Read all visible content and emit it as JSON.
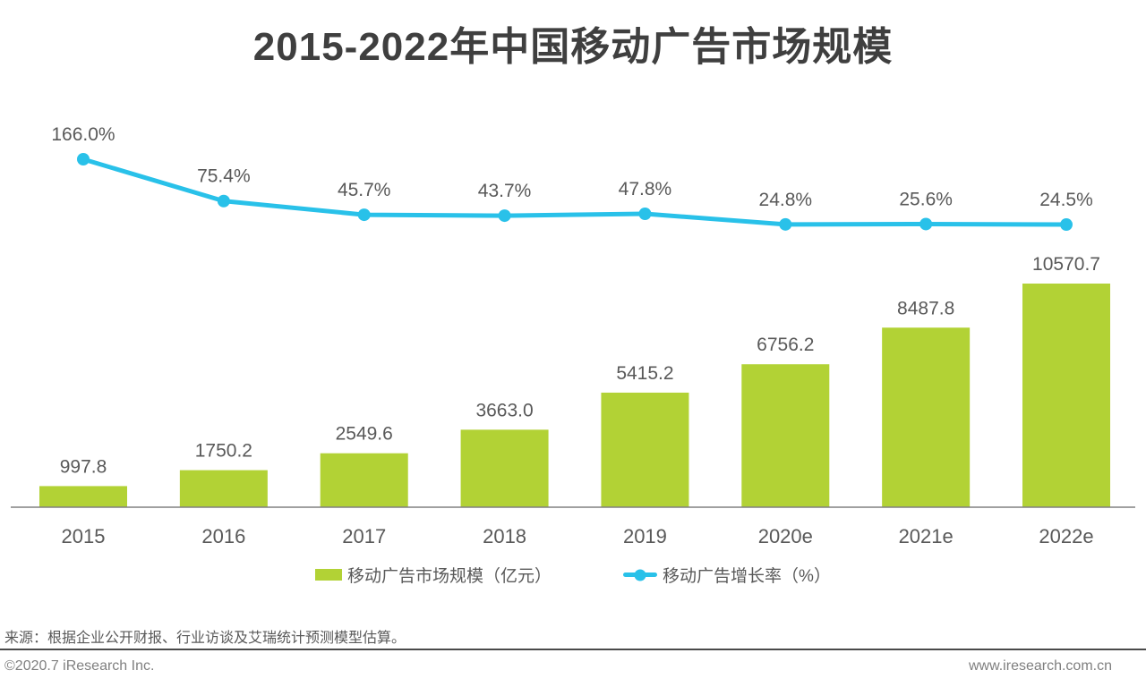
{
  "title": "2015-2022年中国移动广告市场规模",
  "colors": {
    "bar": "#b2d235",
    "line": "#29c1e9",
    "title_text": "#3f3f3f",
    "label_text": "#595959",
    "axis": "#808080",
    "separator": "#4a4a4a",
    "footer_text": "#808080"
  },
  "legend": {
    "items": [
      {
        "label": "移动广告市场规模（亿元）",
        "marker": "bar-swatch"
      },
      {
        "label": "移动广告增长率（%）",
        "marker": "line-dot"
      }
    ]
  },
  "source_note": "来源：根据企业公开财报、行业访谈及艾瑞统计预测模型估算。",
  "footer": {
    "left": "©2020.7 iResearch Inc.",
    "right": "www.iresearch.com.cn"
  },
  "chart_data": {
    "type": "bar",
    "subtype": "bar+line combo, dual axis",
    "title": "2015-2022年中国移动广告市场规模",
    "categories": [
      "2015",
      "2016",
      "2017",
      "2018",
      "2019",
      "2020e",
      "2021e",
      "2022e"
    ],
    "series": [
      {
        "name": "移动广告市场规模（亿元）",
        "type": "bar",
        "axis": "left",
        "values": [
          997.8,
          1750.2,
          2549.6,
          3663.0,
          5415.2,
          6756.2,
          8487.8,
          10570.7
        ],
        "labels": [
          "997.8",
          "1750.2",
          "2549.6",
          "3663.0",
          "5415.2",
          "6756.2",
          "8487.8",
          "10570.7"
        ]
      },
      {
        "name": "移动广告增长率（%）",
        "type": "line",
        "axis": "right",
        "values": [
          166.0,
          75.4,
          45.7,
          43.7,
          47.8,
          24.8,
          25.6,
          24.5
        ],
        "labels": [
          "166.0%",
          "75.4%",
          "45.7%",
          "43.7%",
          "47.8%",
          "24.8%",
          "25.6%",
          "24.5%"
        ]
      }
    ],
    "xlabel": "",
    "ylabel": "",
    "grid": false,
    "axes_hidden": true,
    "legend_position": "bottom",
    "data_labels_shown": true
  }
}
